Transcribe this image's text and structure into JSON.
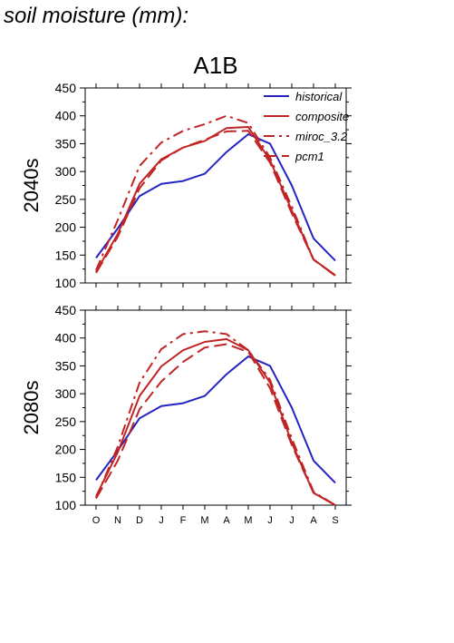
{
  "page": {
    "title": "soil moisture (mm):"
  },
  "scenario_title": "A1B",
  "colors": {
    "historical": "#2424c0",
    "model": "#c02424",
    "axis": "#000000"
  },
  "chart_data": [
    {
      "type": "line",
      "panel_label": "2040s",
      "x": [
        "O",
        "N",
        "D",
        "J",
        "F",
        "M",
        "A",
        "M",
        "J",
        "J",
        "A",
        "S"
      ],
      "ylim": [
        100,
        450
      ],
      "yticks": [
        100,
        150,
        200,
        250,
        300,
        350,
        400,
        450
      ],
      "grid": false,
      "legend": {
        "placement": "top-right",
        "entries": [
          "historical",
          "composite",
          "miroc_3.2",
          "pcm1"
        ]
      },
      "series": [
        {
          "name": "historical",
          "style": "solid",
          "color": "#2424c0",
          "values": [
            145,
            198,
            256,
            278,
            283,
            296,
            335,
            367,
            350,
            275,
            180,
            140
          ]
        },
        {
          "name": "composite",
          "style": "solid",
          "color": "#c02424",
          "values": [
            120,
            188,
            278,
            322,
            343,
            355,
            378,
            380,
            320,
            230,
            142,
            114
          ]
        },
        {
          "name": "miroc_3.2",
          "style": "dashdot",
          "color": "#c02424",
          "values": [
            123,
            213,
            310,
            352,
            373,
            385,
            400,
            387,
            325,
            237,
            142,
            113
          ]
        },
        {
          "name": "pcm1",
          "style": "dashed",
          "color": "#c02424",
          "values": [
            118,
            183,
            270,
            320,
            343,
            357,
            372,
            373,
            316,
            225,
            142,
            113
          ]
        }
      ]
    },
    {
      "type": "line",
      "panel_label": "2080s",
      "x": [
        "O",
        "N",
        "D",
        "J",
        "F",
        "M",
        "A",
        "M",
        "J",
        "J",
        "A",
        "S"
      ],
      "ylim": [
        100,
        450
      ],
      "yticks": [
        100,
        150,
        200,
        250,
        300,
        350,
        400,
        450
      ],
      "grid": false,
      "series": [
        {
          "name": "historical",
          "style": "solid",
          "color": "#2424c0",
          "values": [
            145,
            198,
            256,
            278,
            283,
            296,
            335,
            367,
            350,
            275,
            180,
            140
          ]
        },
        {
          "name": "composite",
          "style": "solid",
          "color": "#c02424",
          "values": [
            116,
            195,
            296,
            349,
            378,
            393,
            398,
            378,
            320,
            212,
            122,
            100
          ]
        },
        {
          "name": "miroc_3.2",
          "style": "dashdot",
          "color": "#c02424",
          "values": [
            113,
            205,
            320,
            380,
            407,
            412,
            407,
            378,
            325,
            220,
            124,
            100
          ]
        },
        {
          "name": "pcm1",
          "style": "dashed",
          "color": "#c02424",
          "values": [
            112,
            180,
            272,
            322,
            357,
            383,
            389,
            375,
            310,
            208,
            122,
            100
          ]
        }
      ]
    }
  ]
}
